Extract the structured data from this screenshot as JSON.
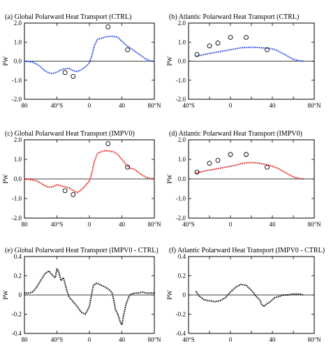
{
  "colors": {
    "ctrl": "#1f3fd6",
    "impv0": "#e01010",
    "diff": "#000000",
    "obs_marker": "#000000"
  },
  "chart_data": [
    {
      "type": "line",
      "title": "(a) Global Polarward Heat Transport (CTRL)",
      "ylabel": "PW",
      "xlim": [
        -80,
        80
      ],
      "ylim": [
        -2.0,
        2.0
      ],
      "xticks": [
        -80,
        -40,
        0,
        40,
        80
      ],
      "xticklabels": [
        "80",
        "40°S",
        "0",
        "40",
        "80°N"
      ],
      "yticks": [
        -2,
        -1,
        0,
        1,
        2
      ],
      "yticklabels": [
        "-2.0",
        "-1.0",
        "0.0",
        "1.0",
        "2.0"
      ],
      "zero_line": true,
      "series": [
        {
          "color": "#1f3fd6",
          "x": [
            -80,
            -75,
            -70,
            -65,
            -60,
            -55,
            -50,
            -45,
            -40,
            -35,
            -30,
            -25,
            -20,
            -15,
            -10,
            -5,
            0,
            3,
            6,
            10,
            15,
            20,
            25,
            30,
            35,
            40,
            45,
            50,
            55,
            60,
            65,
            70,
            75,
            80
          ],
          "y": [
            0,
            -0.02,
            -0.05,
            -0.15,
            -0.3,
            -0.5,
            -0.62,
            -0.65,
            -0.58,
            -0.45,
            -0.4,
            -0.38,
            -0.5,
            -0.55,
            -0.45,
            -0.3,
            -0.1,
            0.3,
            0.8,
            1.15,
            1.2,
            1.28,
            1.3,
            1.3,
            1.25,
            1.05,
            0.85,
            0.7,
            0.55,
            0.4,
            0.25,
            0.1,
            0.02,
            0
          ]
        }
      ],
      "observations": {
        "x": [
          -30,
          -20,
          23,
          47
        ],
        "y": [
          -0.6,
          -0.8,
          1.8,
          0.6
        ]
      }
    },
    {
      "type": "line",
      "title": "(b) Atlantic Polarward Heat Transport (CTRL)",
      "ylabel": "PW",
      "xlim": [
        -40,
        80
      ],
      "ylim": [
        -2.0,
        2.0
      ],
      "xticks": [
        -40,
        -20,
        0,
        20,
        40,
        60,
        80
      ],
      "xticklabels": [
        "40°S",
        "",
        "0",
        "",
        "40",
        "",
        "80°N"
      ],
      "yticks": [
        -2,
        -1,
        0,
        1,
        2
      ],
      "yticklabels": [
        "-2.0",
        "-1.0",
        "0.0",
        "1.0",
        "2.0"
      ],
      "zero_line": true,
      "series": [
        {
          "color": "#1f3fd6",
          "x": [
            -33,
            -25,
            -15,
            -5,
            0,
            5,
            10,
            15,
            20,
            25,
            30,
            35,
            40,
            45,
            50,
            55,
            60,
            65,
            70
          ],
          "y": [
            0.25,
            0.35,
            0.45,
            0.55,
            0.6,
            0.65,
            0.7,
            0.72,
            0.73,
            0.72,
            0.7,
            0.68,
            0.65,
            0.55,
            0.4,
            0.25,
            0.1,
            0.03,
            0
          ]
        }
      ],
      "observations": {
        "x": [
          -32,
          -20,
          -12,
          0,
          15,
          35
        ],
        "y": [
          0.35,
          0.8,
          0.95,
          1.25,
          1.25,
          0.6
        ]
      }
    },
    {
      "type": "line",
      "title": "(c) Global Polarward Heat Transport (IMPV0)",
      "ylabel": "PW",
      "xlim": [
        -80,
        80
      ],
      "ylim": [
        -2.0,
        2.0
      ],
      "xticks": [
        -80,
        -40,
        0,
        40,
        80
      ],
      "xticklabels": [
        "80",
        "40°S",
        "0",
        "40",
        "80°N"
      ],
      "yticks": [
        -2,
        -1,
        0,
        1,
        2
      ],
      "yticklabels": [
        "-2.0",
        "-1.0",
        "0.0",
        "1.0",
        "2.0"
      ],
      "zero_line": true,
      "series": [
        {
          "color": "#e01010",
          "x": [
            -80,
            -75,
            -70,
            -65,
            -60,
            -55,
            -50,
            -45,
            -40,
            -35,
            -30,
            -25,
            -20,
            -15,
            -10,
            -5,
            0,
            3,
            6,
            10,
            15,
            20,
            25,
            30,
            35,
            40,
            45,
            50,
            55,
            60,
            65,
            70,
            75,
            80
          ],
          "y": [
            0,
            -0.02,
            -0.05,
            -0.1,
            -0.2,
            -0.35,
            -0.42,
            -0.4,
            -0.3,
            -0.35,
            -0.4,
            -0.45,
            -0.6,
            -0.7,
            -0.55,
            -0.35,
            -0.1,
            0.3,
            0.9,
            1.3,
            1.4,
            1.45,
            1.42,
            1.38,
            1.25,
            1.0,
            0.75,
            0.55,
            0.5,
            0.35,
            0.2,
            0.08,
            0.02,
            0
          ]
        }
      ],
      "observations": {
        "x": [
          -30,
          -20,
          23,
          47
        ],
        "y": [
          -0.6,
          -0.8,
          1.8,
          0.6
        ]
      }
    },
    {
      "type": "line",
      "title": "(d) Atlantic Polarward Heat Transport (IMPV0)",
      "ylabel": "PW",
      "xlim": [
        -40,
        80
      ],
      "ylim": [
        -2.0,
        2.0
      ],
      "xticks": [
        -40,
        -20,
        0,
        20,
        40,
        60,
        80
      ],
      "xticklabels": [
        "40°S",
        "",
        "0",
        "",
        "40",
        "",
        "80°N"
      ],
      "yticks": [
        -2,
        -1,
        0,
        1,
        2
      ],
      "yticklabels": [
        "-2.0",
        "-1.0",
        "0.0",
        "1.0",
        "2.0"
      ],
      "zero_line": true,
      "series": [
        {
          "color": "#e01010",
          "x": [
            -33,
            -25,
            -15,
            -5,
            0,
            5,
            10,
            15,
            20,
            25,
            30,
            35,
            40,
            45,
            50,
            55,
            60,
            65,
            70
          ],
          "y": [
            0.3,
            0.4,
            0.5,
            0.6,
            0.65,
            0.7,
            0.78,
            0.82,
            0.84,
            0.82,
            0.78,
            0.72,
            0.65,
            0.55,
            0.4,
            0.25,
            0.1,
            0.03,
            0
          ]
        }
      ],
      "observations": {
        "x": [
          -32,
          -20,
          -12,
          0,
          15,
          35
        ],
        "y": [
          0.35,
          0.8,
          0.95,
          1.25,
          1.25,
          0.6
        ]
      }
    },
    {
      "type": "line",
      "title": "(e) Global Polarward Heat Transport (IMPV0 - CTRL)",
      "ylabel": "PW",
      "xlim": [
        -80,
        80
      ],
      "ylim": [
        -0.4,
        0.4
      ],
      "xticks": [
        -80,
        -40,
        0,
        40,
        80
      ],
      "xticklabels": [
        "80",
        "40°S",
        "0",
        "40",
        "80°N"
      ],
      "yticks": [
        -0.4,
        -0.2,
        0,
        0.2,
        0.4
      ],
      "yticklabels": [
        "-0.4",
        "-0.2",
        "0",
        "0.2",
        "0.4"
      ],
      "zero_line": true,
      "series": [
        {
          "color": "#000000",
          "x": [
            -80,
            -75,
            -70,
            -65,
            -60,
            -55,
            -50,
            -45,
            -42,
            -40,
            -38,
            -35,
            -32,
            -30,
            -28,
            -25,
            -22,
            -20,
            -15,
            -10,
            -5,
            0,
            3,
            5,
            8,
            10,
            15,
            20,
            25,
            28,
            30,
            32,
            35,
            38,
            40,
            42,
            45,
            48,
            50,
            55,
            60,
            65,
            70,
            75,
            80
          ],
          "y": [
            0.02,
            0.02,
            0.03,
            0.08,
            0.15,
            0.22,
            0.25,
            0.2,
            0.18,
            0.27,
            0.25,
            0.15,
            0.18,
            0.12,
            0.05,
            -0.02,
            -0.05,
            -0.07,
            -0.12,
            -0.18,
            -0.2,
            -0.12,
            0.02,
            0.1,
            0.12,
            0.12,
            0.1,
            0.08,
            0.05,
            0.02,
            -0.05,
            -0.15,
            -0.2,
            -0.28,
            -0.31,
            -0.22,
            -0.1,
            -0.03,
            0.0,
            0.02,
            0.02,
            0.03,
            0.02,
            0.02,
            0.02
          ]
        }
      ]
    },
    {
      "type": "line",
      "title": "(f) Atlantic Polarward Heat Transport (IMPV0 - CTRL)",
      "ylabel": "PW",
      "xlim": [
        -40,
        80
      ],
      "ylim": [
        -0.4,
        0.4
      ],
      "xticks": [
        -40,
        -20,
        0,
        20,
        40,
        60,
        80
      ],
      "xticklabels": [
        "40°S",
        "",
        "0",
        "",
        "40",
        "",
        "80°N"
      ],
      "yticks": [
        -0.4,
        -0.2,
        0,
        0.2,
        0.4
      ],
      "yticklabels": [
        "-0.4",
        "-0.2",
        "0",
        "0.2",
        "0.4"
      ],
      "zero_line": true,
      "series": [
        {
          "color": "#000000",
          "x": [
            -33,
            -30,
            -25,
            -20,
            -15,
            -10,
            -5,
            0,
            5,
            10,
            15,
            20,
            25,
            28,
            30,
            32,
            35,
            38,
            40,
            42,
            45,
            48,
            50,
            55,
            60,
            65,
            70
          ],
          "y": [
            0.04,
            -0.01,
            -0.05,
            -0.06,
            -0.07,
            -0.06,
            -0.03,
            0.03,
            0.08,
            0.11,
            0.1,
            0.05,
            -0.02,
            -0.05,
            -0.1,
            -0.12,
            -0.09,
            -0.07,
            -0.05,
            -0.03,
            -0.02,
            -0.01,
            0.0,
            0.0,
            0.01,
            0.01,
            0.0
          ]
        }
      ]
    }
  ]
}
